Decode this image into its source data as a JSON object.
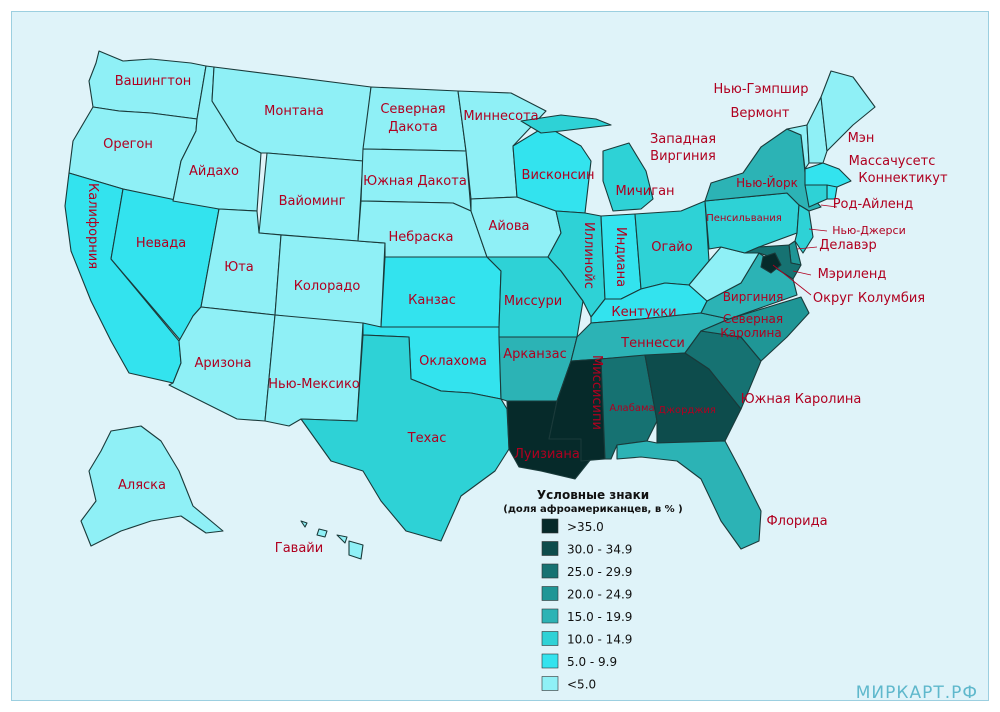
{
  "palette": {
    "lt5": "#8ff0f6",
    "b5_10": "#33e3ee",
    "b10_15": "#2ed2d6",
    "b15_20": "#2cb3b5",
    "b20_25": "#1f9696",
    "b25_30": "#167272",
    "b30_35": "#0d4c4c",
    "gt35": "#062a2a"
  },
  "legend": {
    "title": "Условные знаки",
    "subtitle": "(доля афроамериканцев, в % )",
    "items": [
      {
        "label": ">35.0",
        "bin": "gt35"
      },
      {
        "label": "30.0 - 34.9",
        "bin": "b30_35"
      },
      {
        "label": "25.0 - 29.9",
        "bin": "b25_30"
      },
      {
        "label": "20.0 - 24.9",
        "bin": "b20_25"
      },
      {
        "label": "15.0 - 19.9",
        "bin": "b15_20"
      },
      {
        "label": "10.0 - 14.9",
        "bin": "b10_15"
      },
      {
        "label": "5.0 - 9.9",
        "bin": "b5_10"
      },
      {
        "label": "<5.0",
        "bin": "lt5"
      }
    ]
  },
  "states": {
    "washington": {
      "name": "Вашингтон",
      "bin": "lt5"
    },
    "oregon": {
      "name": "Орегон",
      "bin": "lt5"
    },
    "california": {
      "name": "Калифорния",
      "bin": "b5_10"
    },
    "nevada": {
      "name": "Невада",
      "bin": "b5_10"
    },
    "idaho": {
      "name": "Айдахо",
      "bin": "lt5"
    },
    "montana": {
      "name": "Монтана",
      "bin": "lt5"
    },
    "wyoming": {
      "name": "Вайоминг",
      "bin": "lt5"
    },
    "utah": {
      "name": "Юта",
      "bin": "lt5"
    },
    "arizona": {
      "name": "Аризона",
      "bin": "lt5"
    },
    "colorado": {
      "name": "Колорадо",
      "bin": "lt5"
    },
    "new_mexico": {
      "name": "Нью-Мексико",
      "bin": "lt5"
    },
    "north_dakota": {
      "name": "Северная Дакота",
      "bin": "lt5"
    },
    "south_dakota": {
      "name": "Южная Дакота",
      "bin": "lt5"
    },
    "nebraska": {
      "name": "Небраска",
      "bin": "lt5"
    },
    "kansas": {
      "name": "Канзас",
      "bin": "b5_10"
    },
    "oklahoma": {
      "name": "Оклахома",
      "bin": "b5_10"
    },
    "texas": {
      "name": "Техас",
      "bin": "b10_15"
    },
    "minnesota": {
      "name": "Миннесота",
      "bin": "lt5"
    },
    "iowa": {
      "name": "Айова",
      "bin": "lt5"
    },
    "missouri": {
      "name": "Миссури",
      "bin": "b10_15"
    },
    "arkansas": {
      "name": "Арканзас",
      "bin": "b15_20"
    },
    "louisiana": {
      "name": "Луизиана",
      "bin": "gt35"
    },
    "wisconsin": {
      "name": "Висконсин",
      "bin": "b5_10"
    },
    "illinois": {
      "name": "Иллинойс",
      "bin": "b10_15"
    },
    "michigan": {
      "name": "Мичиган",
      "bin": "b10_15"
    },
    "indiana": {
      "name": "Индиана",
      "bin": "b5_10"
    },
    "ohio": {
      "name": "Огайо",
      "bin": "b10_15"
    },
    "kentucky": {
      "name": "Кентукки",
      "bin": "b5_10"
    },
    "tennessee": {
      "name": "Теннесси",
      "bin": "b15_20"
    },
    "mississippi": {
      "name": "Миссисипи",
      "bin": "gt35"
    },
    "alabama": {
      "name": "Алабама",
      "bin": "b25_30"
    },
    "georgia": {
      "name": "Джорджия",
      "bin": "b30_35"
    },
    "florida": {
      "name": "Флорида",
      "bin": "b15_20"
    },
    "south_carolina": {
      "name": "Южная Каролина",
      "bin": "b25_30"
    },
    "north_carolina": {
      "name": "Северная Каролина",
      "bin": "b20_25"
    },
    "virginia": {
      "name": "Виргиния",
      "bin": "b15_20"
    },
    "west_virginia": {
      "name": "Западная Виргиния",
      "bin": "lt5"
    },
    "pennsylvania": {
      "name": "Пенсильвания",
      "bin": "b10_15"
    },
    "new_york": {
      "name": "Нью-Йорк",
      "bin": "b15_20"
    },
    "vermont": {
      "name": "Вермонт",
      "bin": "lt5"
    },
    "new_hampshire": {
      "name": "Нью-Гэмпшир",
      "bin": "lt5"
    },
    "maine": {
      "name": "Мэн",
      "bin": "lt5"
    },
    "massachusetts": {
      "name": "Массачусетс",
      "bin": "b5_10"
    },
    "rhode_island": {
      "name": "Род-Айленд",
      "bin": "b5_10"
    },
    "connecticut": {
      "name": "Коннектикут",
      "bin": "b10_15"
    },
    "new_jersey": {
      "name": "Нью-Джерси",
      "bin": "b10_15"
    },
    "delaware": {
      "name": "Делавэр",
      "bin": "b20_25"
    },
    "maryland": {
      "name": "Мэриленд",
      "bin": "b25_30"
    },
    "dc": {
      "name": "Округ Колумбия",
      "bin": "gt35"
    },
    "alaska": {
      "name": "Аляска",
      "bin": "lt5"
    },
    "hawaii": {
      "name": "Гавайи",
      "bin": "lt5"
    }
  },
  "watermark": "МИРКАРТ.РФ"
}
